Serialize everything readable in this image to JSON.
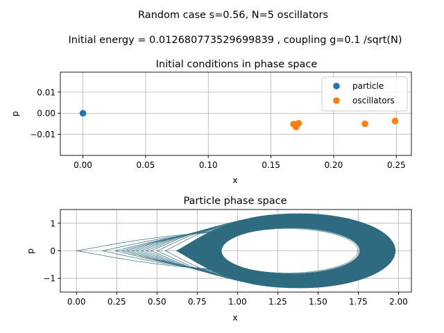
{
  "figure": {
    "suptitle": "Random case s=0.56, N=5 oscillators",
    "subtitle": "Initial energy = 0.012680773529699839 , coupling g=0.1 /sqrt(N)"
  },
  "colors": {
    "particle": "#1f77b4",
    "oscillators": "#ff7f0e",
    "trajectory": "#2e6b80",
    "grid": "#b0b0b0"
  },
  "chart_data": [
    {
      "type": "scatter",
      "title": "Initial conditions in phase space",
      "xlabel": "x",
      "ylabel": "p",
      "xlim": [
        -0.018,
        0.262
      ],
      "ylim": [
        -0.02,
        0.0195
      ],
      "xticks": [
        0.0,
        0.05,
        0.1,
        0.15,
        0.2,
        0.25
      ],
      "xtick_labels": [
        "0.00",
        "0.05",
        "0.10",
        "0.15",
        "0.20",
        "0.25"
      ],
      "yticks": [
        -0.01,
        0.0,
        0.01
      ],
      "ytick_labels": [
        "−0.01",
        "0.00",
        "0.01"
      ],
      "grid": true,
      "legend_position": "top-right",
      "series": [
        {
          "name": "particle",
          "color": "#1f77b4",
          "points": [
            [
              0.0,
              0.0
            ]
          ]
        },
        {
          "name": "oscillators",
          "color": "#ff7f0e",
          "points": [
            [
              0.168,
              -0.0052
            ],
            [
              0.17,
              -0.0065
            ],
            [
              0.172,
              -0.0048
            ],
            [
              0.225,
              -0.005
            ],
            [
              0.249,
              -0.0037
            ]
          ]
        }
      ]
    },
    {
      "type": "line",
      "title": "Particle phase space",
      "xlabel": "x",
      "ylabel": "p",
      "xlim": [
        -0.1,
        2.08
      ],
      "ylim": [
        -1.5,
        1.5
      ],
      "xticks": [
        0.0,
        0.25,
        0.5,
        0.75,
        1.0,
        1.25,
        1.5,
        1.75,
        2.0
      ],
      "xtick_labels": [
        "0.00",
        "0.25",
        "0.50",
        "0.75",
        "1.00",
        "1.25",
        "1.50",
        "1.75",
        "2.00"
      ],
      "yticks": [
        -1,
        0,
        1
      ],
      "ytick_labels": [
        "−1",
        "0",
        "1"
      ],
      "grid": true,
      "series": [
        {
          "color": "#2e6b80",
          "trajectory": {
            "center_x": 1.39,
            "start": [
              0.0,
              0.0
            ],
            "outer_left_x": 0.62,
            "outer_right_x": 1.98,
            "outer_p": 1.35,
            "inner_left_x": 0.9,
            "inner_right_x": 1.76,
            "inner_p": 0.84
          }
        }
      ]
    }
  ]
}
